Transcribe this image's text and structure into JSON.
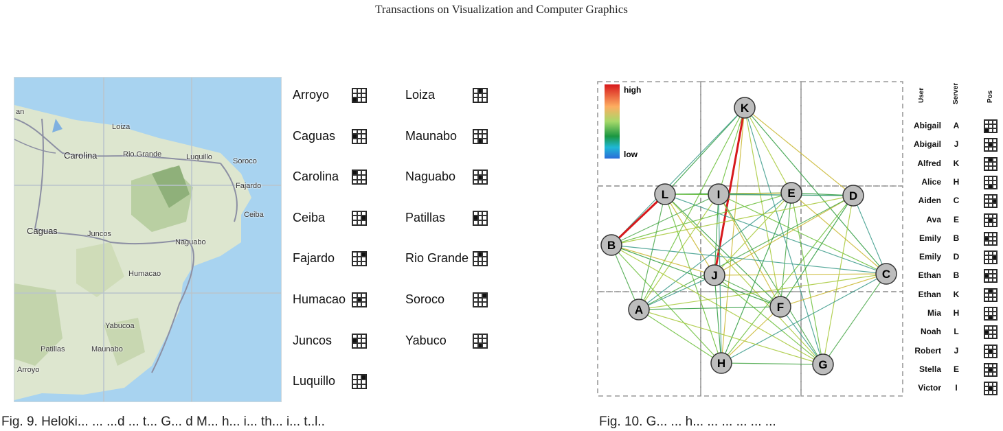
{
  "journal": "Transactions on Visualization and Computer Graphics",
  "map": {
    "places": [
      "Loiza",
      "Carolina",
      "Rio Grande",
      "Luquillo",
      "Soroco",
      "Fajardo",
      "Ceiba",
      "Caguas",
      "Juncos",
      "Naguabo",
      "Humacao",
      "Yabucoa",
      "Patillas",
      "Maunabo",
      "Arroyo",
      "an"
    ]
  },
  "legend": [
    {
      "name": "Arroyo",
      "cell": 6
    },
    {
      "name": "Caguas",
      "cell": 3
    },
    {
      "name": "Carolina",
      "cell": 0
    },
    {
      "name": "Ceiba",
      "cell": 5
    },
    {
      "name": "Fajardo",
      "cell": 2
    },
    {
      "name": "Humacao",
      "cell": 4
    },
    {
      "name": "Juncos",
      "cell": 3
    },
    {
      "name": "Luquillo",
      "cell": 2
    },
    {
      "name": "Loiza",
      "cell": 1
    },
    {
      "name": "Maunabo",
      "cell": 7
    },
    {
      "name": "Naguabo",
      "cell": 4
    },
    {
      "name": "Patillas",
      "cell": 3
    },
    {
      "name": "Rio Grande",
      "cell": 1
    },
    {
      "name": "Soroco",
      "cell": 2
    },
    {
      "name": "Yabuco",
      "cell": 7
    }
  ],
  "graph": {
    "colorbar": {
      "high": "high",
      "low": "low"
    },
    "nodes": [
      "K",
      "L",
      "I",
      "E",
      "D",
      "B",
      "J",
      "C",
      "A",
      "F",
      "H",
      "G"
    ],
    "highlight_edges": [
      [
        "L",
        "B"
      ],
      [
        "K",
        "J"
      ]
    ],
    "colors": {
      "high": "#d7191c",
      "mid": "#9acd32",
      "low": "#2b83ba"
    }
  },
  "table": {
    "headers": {
      "user": "User",
      "server": "Server",
      "pos": "Pos"
    },
    "rows": [
      {
        "user": "Abigail",
        "server": "A",
        "cell": 6
      },
      {
        "user": "Abigail",
        "server": "J",
        "cell": 4
      },
      {
        "user": "Alfred",
        "server": "K",
        "cell": 1
      },
      {
        "user": "Alice",
        "server": "H",
        "cell": 7
      },
      {
        "user": "Aiden",
        "server": "C",
        "cell": 5
      },
      {
        "user": "Ava",
        "server": "E",
        "cell": 4
      },
      {
        "user": "Emily",
        "server": "B",
        "cell": 3
      },
      {
        "user": "Emily",
        "server": "D",
        "cell": 5
      },
      {
        "user": "Ethan",
        "server": "B",
        "cell": 3
      },
      {
        "user": "Ethan",
        "server": "K",
        "cell": 1
      },
      {
        "user": "Mia",
        "server": "H",
        "cell": 7
      },
      {
        "user": "Noah",
        "server": "L",
        "cell": 3
      },
      {
        "user": "Robert",
        "server": "J",
        "cell": 4
      },
      {
        "user": "Stella",
        "server": "E",
        "cell": 4
      },
      {
        "user": "Victor",
        "server": "I",
        "cell": 4
      }
    ]
  },
  "captions": {
    "left": "Fig. 9.  Heloki... ... ...d ... t... G... d M... h... i... th... i... t..l..",
    "right": "Fig. 10.  G... ... h... ... ... ... ... ..."
  }
}
